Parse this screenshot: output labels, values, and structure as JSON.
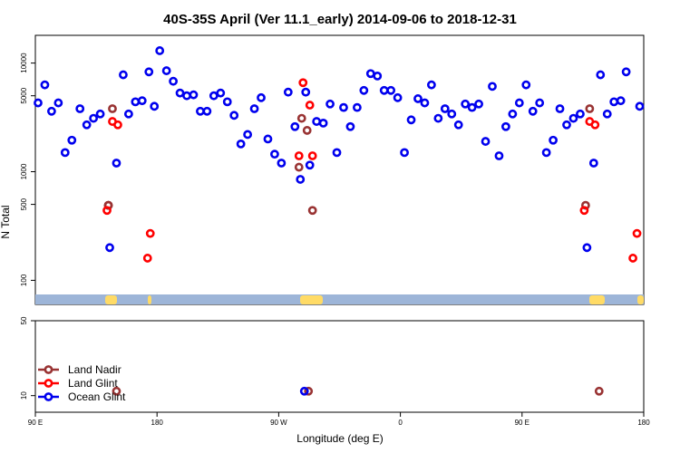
{
  "chart_data": {
    "type": "scatter",
    "title": "40S-35S April (Ver 11.1_early)   2014-09-06 to 2018-12-31",
    "xlabel": "Longitude (deg E)",
    "ylabel": "N Total",
    "y_scale": "log",
    "x_ticks": [
      {
        "value": 90,
        "label": "90 E"
      },
      {
        "value": 180,
        "label": "180"
      },
      {
        "value": 270,
        "label": "90 W"
      },
      {
        "value": 360,
        "label": "0"
      },
      {
        "value": 450,
        "label": "90 E"
      },
      {
        "value": 540,
        "label": "180"
      }
    ],
    "xlim": [
      90,
      540
    ],
    "upper_panel": {
      "ylim": [
        60,
        18000
      ],
      "y_ticks": [
        {
          "value": 100,
          "label": "100"
        },
        {
          "value": 500,
          "label": "500"
        },
        {
          "value": 1000,
          "label": "1000"
        },
        {
          "value": 5000,
          "label": "5000"
        },
        {
          "value": 10000,
          "label": "10000"
        }
      ]
    },
    "lower_panel": {
      "ylim": [
        7,
        50
      ],
      "y_ticks": [
        {
          "value": 10,
          "label": "10"
        },
        {
          "value": 50,
          "label": "50"
        }
      ]
    },
    "colors": {
      "land_nadir": "#993333",
      "land_glint": "#ff0000",
      "ocean_glint": "#0000ee",
      "ocean_band": "#9db5d8",
      "land_patch": "#ffdb66"
    },
    "series": [
      {
        "name": "Land Nadir",
        "key": "land_nadir",
        "points": [
          {
            "x": 144,
            "y": 490
          },
          {
            "x": 144,
            "y": 490
          },
          {
            "x": 144,
            "y": 490
          },
          {
            "x": 147,
            "y": 3800
          },
          {
            "x": 150,
            "y": 11
          },
          {
            "x": 287,
            "y": 3100
          },
          {
            "x": 285,
            "y": 1100
          },
          {
            "x": 291,
            "y": 2400
          },
          {
            "x": 295,
            "y": 440
          },
          {
            "x": 292,
            "y": 11
          },
          {
            "x": 497,
            "y": 490
          },
          {
            "x": 500,
            "y": 3800
          },
          {
            "x": 507,
            "y": 11
          }
        ]
      },
      {
        "name": "Land Glint",
        "key": "land_glint",
        "points": [
          {
            "x": 143,
            "y": 440
          },
          {
            "x": 147,
            "y": 2900
          },
          {
            "x": 151,
            "y": 2700
          },
          {
            "x": 173,
            "y": 160
          },
          {
            "x": 175,
            "y": 270
          },
          {
            "x": 285,
            "y": 1400
          },
          {
            "x": 288,
            "y": 6600
          },
          {
            "x": 293,
            "y": 4100
          },
          {
            "x": 295,
            "y": 1400
          },
          {
            "x": 496,
            "y": 440
          },
          {
            "x": 500,
            "y": 2900
          },
          {
            "x": 504,
            "y": 2700
          },
          {
            "x": 532,
            "y": 160
          },
          {
            "x": 535,
            "y": 270
          }
        ]
      },
      {
        "name": "Ocean Glint",
        "key": "ocean_glint",
        "points": [
          {
            "x": 92,
            "y": 4300
          },
          {
            "x": 97,
            "y": 6300
          },
          {
            "x": 102,
            "y": 3600
          },
          {
            "x": 107,
            "y": 4300
          },
          {
            "x": 112,
            "y": 1500
          },
          {
            "x": 117,
            "y": 1950
          },
          {
            "x": 123,
            "y": 3800
          },
          {
            "x": 128,
            "y": 2700
          },
          {
            "x": 133,
            "y": 3100
          },
          {
            "x": 138,
            "y": 3400
          },
          {
            "x": 145,
            "y": 200
          },
          {
            "x": 150,
            "y": 1200
          },
          {
            "x": 155,
            "y": 7800
          },
          {
            "x": 159,
            "y": 3400
          },
          {
            "x": 164,
            "y": 4400
          },
          {
            "x": 169,
            "y": 4500
          },
          {
            "x": 174,
            "y": 8300
          },
          {
            "x": 178,
            "y": 4000
          },
          {
            "x": 182,
            "y": 13000
          },
          {
            "x": 187,
            "y": 8500
          },
          {
            "x": 192,
            "y": 6800
          },
          {
            "x": 197,
            "y": 5300
          },
          {
            "x": 202,
            "y": 5000
          },
          {
            "x": 207,
            "y": 5100
          },
          {
            "x": 212,
            "y": 3600
          },
          {
            "x": 217,
            "y": 3600
          },
          {
            "x": 222,
            "y": 5000
          },
          {
            "x": 227,
            "y": 5300
          },
          {
            "x": 232,
            "y": 4400
          },
          {
            "x": 237,
            "y": 3300
          },
          {
            "x": 242,
            "y": 1800
          },
          {
            "x": 247,
            "y": 2200
          },
          {
            "x": 252,
            "y": 3800
          },
          {
            "x": 257,
            "y": 4800
          },
          {
            "x": 262,
            "y": 2000
          },
          {
            "x": 267,
            "y": 1450
          },
          {
            "x": 272,
            "y": 1200
          },
          {
            "x": 277,
            "y": 5400
          },
          {
            "x": 282,
            "y": 2600
          },
          {
            "x": 286,
            "y": 850
          },
          {
            "x": 290,
            "y": 5400
          },
          {
            "x": 293,
            "y": 1150
          },
          {
            "x": 298,
            "y": 2900
          },
          {
            "x": 303,
            "y": 2800
          },
          {
            "x": 308,
            "y": 4200
          },
          {
            "x": 313,
            "y": 1500
          },
          {
            "x": 318,
            "y": 3900
          },
          {
            "x": 323,
            "y": 2600
          },
          {
            "x": 328,
            "y": 3900
          },
          {
            "x": 333,
            "y": 5600
          },
          {
            "x": 338,
            "y": 8000
          },
          {
            "x": 343,
            "y": 7600
          },
          {
            "x": 348,
            "y": 5600
          },
          {
            "x": 353,
            "y": 5600
          },
          {
            "x": 358,
            "y": 4800
          },
          {
            "x": 363,
            "y": 1500
          },
          {
            "x": 368,
            "y": 3000
          },
          {
            "x": 373,
            "y": 4700
          },
          {
            "x": 378,
            "y": 4300
          },
          {
            "x": 383,
            "y": 6300
          },
          {
            "x": 388,
            "y": 3100
          },
          {
            "x": 393,
            "y": 3800
          },
          {
            "x": 398,
            "y": 3400
          },
          {
            "x": 403,
            "y": 2700
          },
          {
            "x": 408,
            "y": 4200
          },
          {
            "x": 413,
            "y": 3900
          },
          {
            "x": 418,
            "y": 4200
          },
          {
            "x": 423,
            "y": 1900
          },
          {
            "x": 428,
            "y": 6100
          },
          {
            "x": 433,
            "y": 1400
          },
          {
            "x": 438,
            "y": 2600
          },
          {
            "x": 443,
            "y": 3400
          },
          {
            "x": 448,
            "y": 4300
          },
          {
            "x": 453,
            "y": 6300
          },
          {
            "x": 458,
            "y": 3600
          },
          {
            "x": 463,
            "y": 4300
          },
          {
            "x": 468,
            "y": 1500
          },
          {
            "x": 473,
            "y": 1950
          },
          {
            "x": 478,
            "y": 3800
          },
          {
            "x": 483,
            "y": 2700
          },
          {
            "x": 488,
            "y": 3100
          },
          {
            "x": 493,
            "y": 3400
          },
          {
            "x": 498,
            "y": 200
          },
          {
            "x": 503,
            "y": 1200
          },
          {
            "x": 508,
            "y": 7800
          },
          {
            "x": 513,
            "y": 3400
          },
          {
            "x": 518,
            "y": 4400
          },
          {
            "x": 523,
            "y": 4500
          },
          {
            "x": 527,
            "y": 8300
          },
          {
            "x": 537,
            "y": 4000
          },
          {
            "x": 289,
            "y": 11
          }
        ]
      }
    ],
    "legend": {
      "placement": "lower-left",
      "entries": [
        "Land Nadir",
        "Land Glint",
        "Ocean Glint"
      ]
    }
  }
}
